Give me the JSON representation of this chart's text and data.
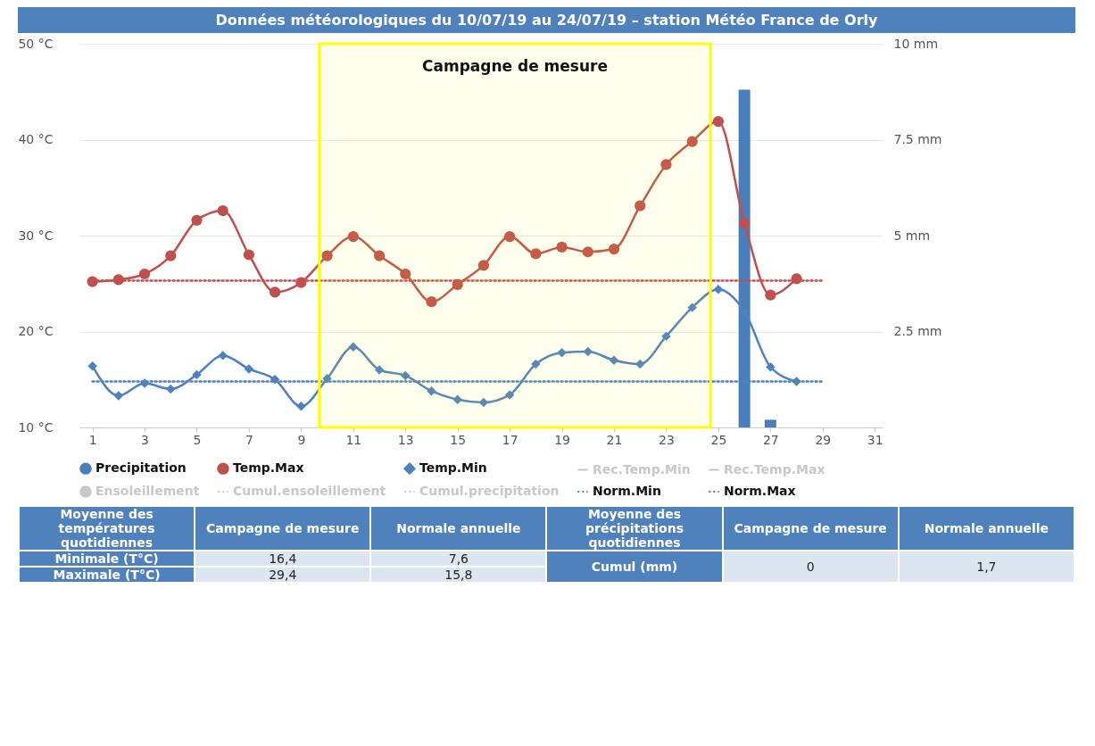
{
  "chart_data": {
    "type": "line",
    "title": "Données météorologiques du 10/07/19 au 24/07/19 – station Météo France de Orly",
    "x": [
      1,
      2,
      3,
      4,
      5,
      6,
      7,
      8,
      9,
      10,
      11,
      12,
      13,
      14,
      15,
      16,
      17,
      18,
      19,
      20,
      21,
      22,
      23,
      24,
      25,
      26,
      27,
      28
    ],
    "series": [
      {
        "name": "Precipitation",
        "type": "bar",
        "axis": "y2",
        "color": "#4a7ebb",
        "x": [
          26,
          27
        ],
        "values": [
          8.8,
          0.2
        ]
      },
      {
        "name": "Temp.Max",
        "marker": "circle",
        "color": "#c0504d",
        "values": [
          25.2,
          25.4,
          26.0,
          27.9,
          31.6,
          32.6,
          28.0,
          24.1,
          25.1,
          27.9,
          29.9,
          27.9,
          26.0,
          23.1,
          24.9,
          26.9,
          29.9,
          28.1,
          28.8,
          28.3,
          28.6,
          33.1,
          37.4,
          39.8,
          41.9,
          31.3,
          23.8,
          25.5
        ]
      },
      {
        "name": "Temp.Min",
        "marker": "diamond",
        "color": "#4f81bd",
        "values": [
          16.4,
          13.3,
          14.6,
          14.0,
          15.5,
          17.5,
          16.1,
          15.0,
          12.2,
          15.1,
          18.4,
          16.0,
          15.4,
          13.8,
          12.9,
          12.6,
          13.4,
          16.6,
          17.8,
          17.9,
          17.0,
          16.6,
          19.5,
          22.5,
          24.4,
          22.1,
          16.3,
          14.8
        ]
      },
      {
        "name": "Rec.Temp.Min",
        "color": "#c8c8c8",
        "values": [
          null,
          null,
          null,
          null,
          null,
          null,
          null,
          null,
          null,
          null,
          null,
          null,
          null,
          null,
          null,
          null,
          null,
          null,
          null,
          null,
          null,
          null,
          null,
          null,
          null,
          null,
          null,
          null
        ]
      },
      {
        "name": "Rec.Temp.Max",
        "color": "#c8c8c8",
        "values": [
          null,
          null,
          null,
          null,
          null,
          null,
          null,
          null,
          null,
          null,
          null,
          null,
          null,
          null,
          null,
          null,
          null,
          null,
          null,
          null,
          null,
          null,
          null,
          null,
          null,
          null,
          null,
          null
        ]
      },
      {
        "name": "Ensoleillement",
        "type": "bar",
        "color": "#c8c8c8",
        "values": [
          null,
          null,
          null,
          null,
          null,
          null,
          null,
          null,
          null,
          null,
          null,
          null,
          null,
          null,
          null,
          null,
          null,
          null,
          null,
          null,
          null,
          null,
          null,
          null,
          null,
          null,
          null,
          null
        ]
      },
      {
        "name": "Cumul.ensoleillement",
        "line_style": "dotted",
        "color": "#c8c8c8",
        "values": [
          null,
          null,
          null,
          null,
          null,
          null,
          null,
          null,
          null,
          null,
          null,
          null,
          null,
          null,
          null,
          null,
          null,
          null,
          null,
          null,
          null,
          null,
          null,
          null,
          null,
          null,
          null,
          null
        ]
      },
      {
        "name": "Cumul.precipitation",
        "line_style": "dotted",
        "color": "#c8c8c8",
        "values": [
          null,
          null,
          null,
          null,
          null,
          null,
          null,
          null,
          null,
          null,
          null,
          null,
          null,
          null,
          null,
          null,
          null,
          null,
          null,
          null,
          null,
          null,
          null,
          null,
          null,
          null,
          null,
          null
        ]
      },
      {
        "name": "Norm.Min",
        "line_style": "dotted",
        "color": "#4f81bd",
        "x": [
          1,
          29
        ],
        "values": [
          14.8,
          14.8
        ]
      },
      {
        "name": "Norm.Max",
        "line_style": "dotted",
        "color": "#c0504d",
        "x": [
          1,
          29
        ],
        "values": [
          25.3,
          25.3
        ]
      }
    ],
    "xlim": [
      0.5,
      31.3
    ],
    "xticks": [
      1,
      3,
      5,
      7,
      9,
      11,
      13,
      15,
      17,
      19,
      21,
      23,
      25,
      27,
      29,
      31
    ],
    "ylim": [
      10,
      50
    ],
    "yticks": [
      {
        "value": 10,
        "label": "10 °C"
      },
      {
        "value": 20,
        "label": "20 °C"
      },
      {
        "value": 30,
        "label": "30 °C"
      },
      {
        "value": 40,
        "label": "40 °C"
      },
      {
        "value": 50,
        "label": "50 °C"
      }
    ],
    "y2lim": [
      0,
      10
    ],
    "y2ticks": [
      {
        "value": 2.5,
        "label": "2.5 mm"
      },
      {
        "value": 5,
        "label": "5 mm"
      },
      {
        "value": 7.5,
        "label": "7.5 mm"
      },
      {
        "value": 10,
        "label": "10 mm"
      }
    ],
    "bands": [
      {
        "axis": "x",
        "from": 9.7,
        "to": 24.7,
        "label": "Campagne de mesure",
        "color": "#ffff00"
      }
    ],
    "grid": "y",
    "legend": "bottom",
    "annotations": [
      "Moyenne des températures quotidiennes",
      "Campagne de mesure",
      "Normale annuelle",
      "Moyenne des précipitations quotidiennes",
      "Campagne de mesure",
      "Normale annuelle",
      "Minimale (T°C)",
      "16,4",
      "7,6",
      "Cumul (mm)",
      "0",
      "1,7",
      "Maximale (T°C)",
      "29,4",
      "15,8"
    ]
  }
}
